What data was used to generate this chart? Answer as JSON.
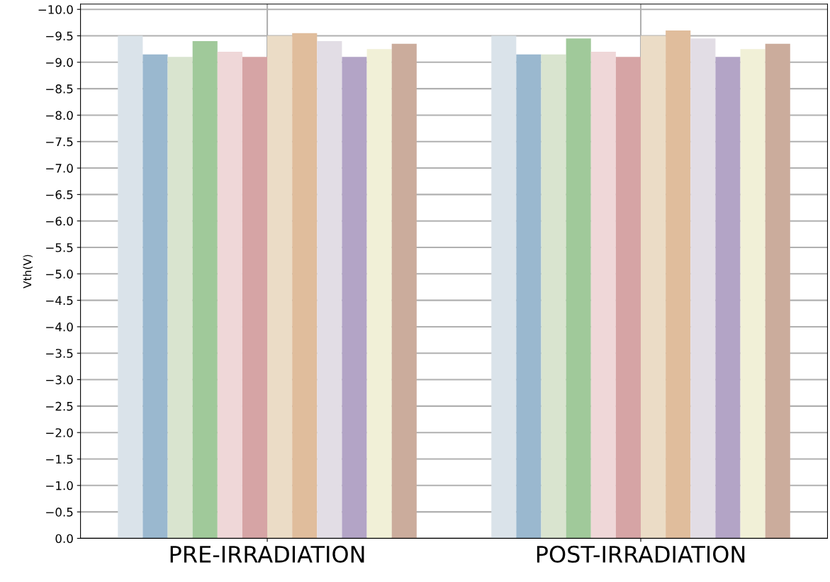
{
  "chart_data": {
    "type": "bar",
    "ylabel": "Vth(V)",
    "categories": [
      "PRE-IRRADIATION",
      "POST-IRRADIATION"
    ],
    "series": [
      {
        "color": "#dae3ea",
        "values": [
          -9.5,
          -9.5
        ]
      },
      {
        "color": "#9ab8cf",
        "values": [
          -9.15,
          -9.15
        ]
      },
      {
        "color": "#d9e4cf",
        "values": [
          -9.1,
          -9.15
        ]
      },
      {
        "color": "#a0c99a",
        "values": [
          -9.4,
          -9.45
        ]
      },
      {
        "color": "#efd7d8",
        "values": [
          -9.2,
          -9.2
        ]
      },
      {
        "color": "#d6a4a5",
        "values": [
          -9.1,
          -9.1
        ]
      },
      {
        "color": "#ebdcc6",
        "values": [
          -9.5,
          -9.5
        ]
      },
      {
        "color": "#e0bd9c",
        "values": [
          -9.55,
          -9.6
        ]
      },
      {
        "color": "#e2dde5",
        "values": [
          -9.4,
          -9.45
        ]
      },
      {
        "color": "#b3a4c6",
        "values": [
          -9.1,
          -9.1
        ]
      },
      {
        "color": "#f1f0d7",
        "values": [
          -9.25,
          -9.25
        ]
      },
      {
        "color": "#cbac9c",
        "values": [
          -9.35,
          -9.35
        ]
      }
    ],
    "ylim": [
      0,
      -10.1
    ],
    "yticks": [
      {
        "value": 0,
        "label": "0.0"
      },
      {
        "value": -0.5,
        "label": "−0.5"
      },
      {
        "value": -1.0,
        "label": "−1.0"
      },
      {
        "value": -1.5,
        "label": "−1.5"
      },
      {
        "value": -2.0,
        "label": "−2.0"
      },
      {
        "value": -2.5,
        "label": "−2.5"
      },
      {
        "value": -3.0,
        "label": "−3.0"
      },
      {
        "value": -3.5,
        "label": "−3.5"
      },
      {
        "value": -4.0,
        "label": "−4.0"
      },
      {
        "value": -4.5,
        "label": "−4.5"
      },
      {
        "value": -5.0,
        "label": "−5.0"
      },
      {
        "value": -5.5,
        "label": "−5.5"
      },
      {
        "value": -6.0,
        "label": "−6.0"
      },
      {
        "value": -6.5,
        "label": "−6.5"
      },
      {
        "value": -7.0,
        "label": "−7.0"
      },
      {
        "value": -7.5,
        "label": "−7.5"
      },
      {
        "value": -8.0,
        "label": "−8.0"
      },
      {
        "value": -8.5,
        "label": "−8.5"
      },
      {
        "value": -9.0,
        "label": "−9.0"
      },
      {
        "value": -9.5,
        "label": "−9.5"
      },
      {
        "value": -10.0,
        "label": "−10.0"
      }
    ],
    "grid": true
  }
}
